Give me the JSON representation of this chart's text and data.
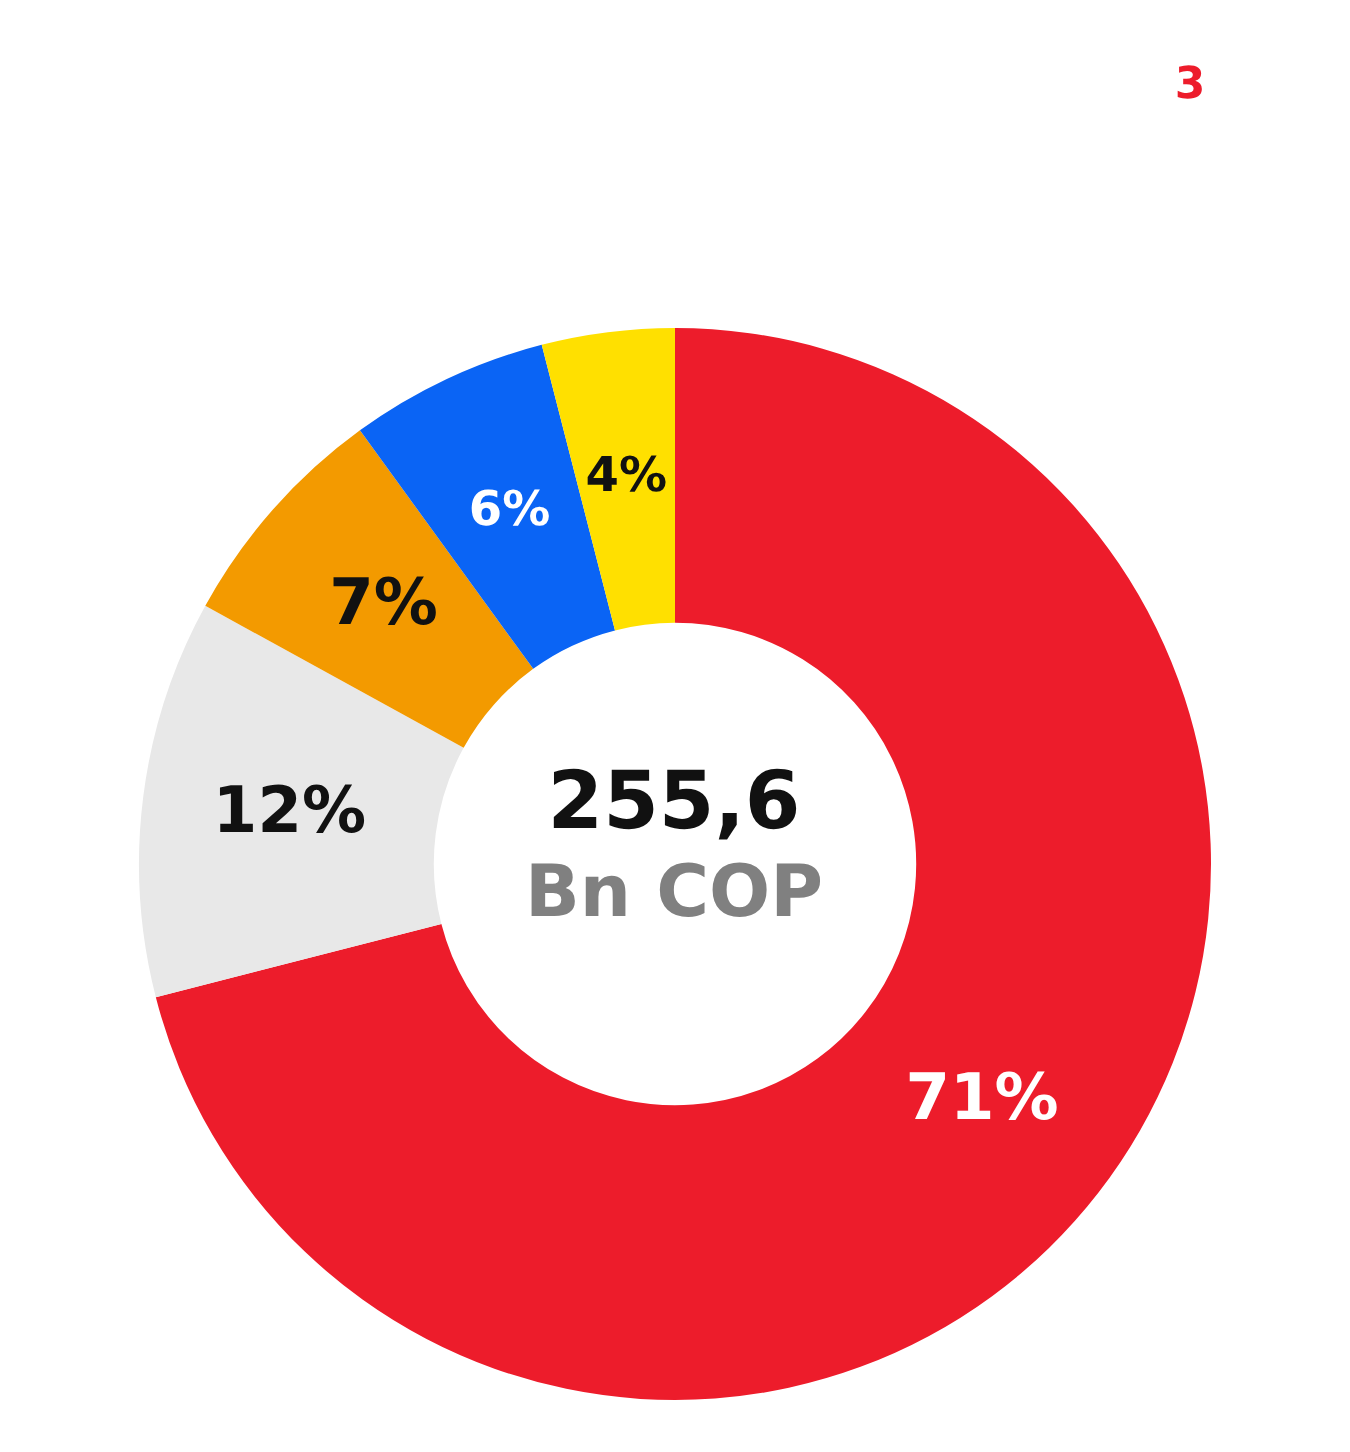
{
  "chart_data": {
    "type": "donut",
    "categories": [
      null,
      null,
      null,
      null,
      null
    ],
    "values": [
      71,
      12,
      7,
      6,
      4
    ],
    "colors": [
      "#ed1c2b",
      "#e8e8e8",
      "#f39a00",
      "#0a64f5",
      "#ffe000"
    ],
    "value_labels": [
      "71%",
      "12%",
      "7%",
      "6%",
      "4%"
    ],
    "annotations": [
      "255,6",
      "Bn COP",
      "3"
    ],
    "legend": false
  }
}
